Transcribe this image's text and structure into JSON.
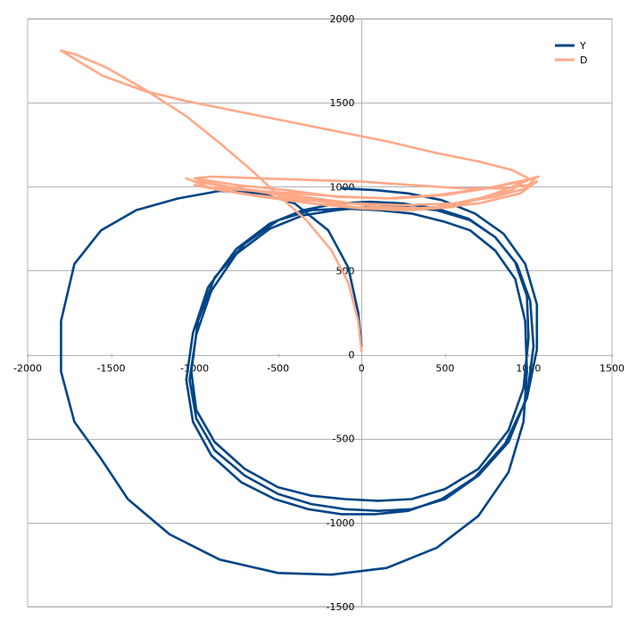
{
  "chart_data": {
    "type": "line",
    "title": "",
    "xlabel": "",
    "ylabel": "",
    "xlim": [
      -2000,
      1500
    ],
    "ylim": [
      -1500,
      2000
    ],
    "xticks": [
      -2000,
      -1500,
      -1000,
      -500,
      0,
      500,
      1000,
      1500
    ],
    "yticks": [
      -1500,
      -1000,
      -500,
      0,
      500,
      1000,
      1500,
      2000
    ],
    "grid": true,
    "axes_cross_at_zero": true,
    "legend_position": "top-right",
    "series": [
      {
        "name": "Y",
        "color": "#004586",
        "points": [
          [
            0,
            50
          ],
          [
            -20,
            250
          ],
          [
            -80,
            520
          ],
          [
            -200,
            740
          ],
          [
            -400,
            900
          ],
          [
            -600,
            960
          ],
          [
            -850,
            975
          ],
          [
            -1100,
            930
          ],
          [
            -1350,
            860
          ],
          [
            -1560,
            740
          ],
          [
            -1720,
            540
          ],
          [
            -1800,
            200
          ],
          [
            -1800,
            -100
          ],
          [
            -1720,
            -400
          ],
          [
            -1560,
            -620
          ],
          [
            -1400,
            -860
          ],
          [
            -1150,
            -1070
          ],
          [
            -850,
            -1220
          ],
          [
            -500,
            -1300
          ],
          [
            -180,
            -1310
          ],
          [
            150,
            -1270
          ],
          [
            450,
            -1150
          ],
          [
            700,
            -960
          ],
          [
            880,
            -700
          ],
          [
            970,
            -400
          ],
          [
            990,
            -100
          ],
          [
            980,
            200
          ],
          [
            920,
            450
          ],
          [
            800,
            620
          ],
          [
            650,
            740
          ],
          [
            500,
            790
          ],
          [
            300,
            840
          ],
          [
            100,
            860
          ],
          [
            -100,
            870
          ],
          [
            -300,
            860
          ],
          [
            -500,
            800
          ],
          [
            -700,
            660
          ],
          [
            -880,
            460
          ],
          [
            -980,
            200
          ],
          [
            -1020,
            -100
          ],
          [
            -990,
            -330
          ],
          [
            -880,
            -520
          ],
          [
            -700,
            -680
          ],
          [
            -500,
            -790
          ],
          [
            -300,
            -840
          ],
          [
            -100,
            -860
          ],
          [
            100,
            -870
          ],
          [
            300,
            -860
          ],
          [
            500,
            -800
          ],
          [
            700,
            -680
          ],
          [
            880,
            -450
          ],
          [
            970,
            -200
          ],
          [
            1000,
            100
          ],
          [
            990,
            350
          ],
          [
            920,
            550
          ],
          [
            800,
            700
          ],
          [
            650,
            800
          ],
          [
            450,
            860
          ],
          [
            250,
            880
          ],
          [
            50,
            880
          ],
          [
            -150,
            860
          ],
          [
            -350,
            830
          ],
          [
            -550,
            750
          ],
          [
            -750,
            600
          ],
          [
            -900,
            380
          ],
          [
            -990,
            120
          ],
          [
            -1030,
            -150
          ],
          [
            -990,
            -380
          ],
          [
            -880,
            -570
          ],
          [
            -700,
            -720
          ],
          [
            -500,
            -830
          ],
          [
            -300,
            -890
          ],
          [
            -100,
            -920
          ],
          [
            100,
            -930
          ],
          [
            300,
            -920
          ],
          [
            500,
            -860
          ],
          [
            700,
            -720
          ],
          [
            880,
            -520
          ],
          [
            990,
            -250
          ],
          [
            1030,
            50
          ],
          [
            1010,
            320
          ],
          [
            930,
            540
          ],
          [
            800,
            700
          ],
          [
            640,
            810
          ],
          [
            450,
            870
          ],
          [
            250,
            900
          ],
          [
            50,
            910
          ],
          [
            -150,
            900
          ],
          [
            -350,
            860
          ],
          [
            -550,
            780
          ],
          [
            -750,
            630
          ],
          [
            -920,
            400
          ],
          [
            -1010,
            130
          ],
          [
            -1050,
            -150
          ],
          [
            -1010,
            -400
          ],
          [
            -900,
            -600
          ],
          [
            -720,
            -760
          ],
          [
            -520,
            -860
          ],
          [
            -320,
            -920
          ],
          [
            -120,
            -950
          ],
          [
            80,
            -950
          ],
          [
            280,
            -930
          ],
          [
            480,
            -860
          ],
          [
            680,
            -730
          ],
          [
            860,
            -530
          ],
          [
            990,
            -260
          ],
          [
            1050,
            30
          ],
          [
            1050,
            300
          ],
          [
            980,
            540
          ],
          [
            850,
            720
          ],
          [
            680,
            840
          ],
          [
            480,
            920
          ],
          [
            280,
            960
          ],
          [
            80,
            980
          ],
          [
            -120,
            990
          ]
        ]
      },
      {
        "name": "D",
        "color": "#ffa988",
        "points": [
          [
            0,
            20
          ],
          [
            -20,
            200
          ],
          [
            -80,
            430
          ],
          [
            -180,
            620
          ],
          [
            -330,
            800
          ],
          [
            -500,
            950
          ],
          [
            -650,
            1090
          ],
          [
            -850,
            1260
          ],
          [
            -1050,
            1420
          ],
          [
            -1300,
            1580
          ],
          [
            -1530,
            1710
          ],
          [
            -1720,
            1790
          ],
          [
            -1800,
            1810
          ],
          [
            -1700,
            1750
          ],
          [
            -1550,
            1660
          ],
          [
            -1300,
            1570
          ],
          [
            -1050,
            1510
          ],
          [
            -750,
            1450
          ],
          [
            -450,
            1390
          ],
          [
            -150,
            1330
          ],
          [
            150,
            1270
          ],
          [
            450,
            1200
          ],
          [
            700,
            1150
          ],
          [
            900,
            1100
          ],
          [
            1000,
            1050
          ],
          [
            900,
            980
          ],
          [
            700,
            930
          ],
          [
            450,
            880
          ],
          [
            200,
            860
          ],
          [
            -50,
            880
          ],
          [
            -300,
            920
          ],
          [
            -550,
            960
          ],
          [
            -800,
            1000
          ],
          [
            -950,
            1030
          ],
          [
            -1000,
            1050
          ],
          [
            -900,
            1060
          ],
          [
            -600,
            1050
          ],
          [
            -300,
            1040
          ],
          [
            0,
            1030
          ],
          [
            300,
            1010
          ],
          [
            600,
            990
          ],
          [
            850,
            990
          ],
          [
            1000,
            1010
          ],
          [
            1050,
            1030
          ],
          [
            950,
            960
          ],
          [
            700,
            900
          ],
          [
            400,
            870
          ],
          [
            100,
            880
          ],
          [
            -200,
            920
          ],
          [
            -500,
            960
          ],
          [
            -800,
            1000
          ],
          [
            -1000,
            1030
          ],
          [
            -1050,
            1050
          ],
          [
            -900,
            990
          ],
          [
            -650,
            950
          ],
          [
            -350,
            920
          ],
          [
            -50,
            900
          ],
          [
            250,
            890
          ],
          [
            550,
            900
          ],
          [
            800,
            940
          ],
          [
            980,
            990
          ],
          [
            1040,
            1050
          ],
          [
            1000,
            1040
          ],
          [
            800,
            960
          ],
          [
            550,
            880
          ],
          [
            300,
            860
          ],
          [
            0,
            870
          ],
          [
            -300,
            900
          ],
          [
            -600,
            940
          ],
          [
            -850,
            980
          ],
          [
            -1000,
            1010
          ],
          [
            -950,
            1000
          ],
          [
            -700,
            980
          ],
          [
            -400,
            960
          ],
          [
            -100,
            940
          ],
          [
            200,
            930
          ],
          [
            500,
            950
          ],
          [
            750,
            990
          ],
          [
            950,
            1030
          ],
          [
            1060,
            1060
          ],
          [
            980,
            1040
          ],
          [
            750,
            990
          ],
          [
            450,
            950
          ],
          [
            150,
            930
          ],
          [
            -150,
            940
          ],
          [
            -450,
            980
          ],
          [
            -750,
            1010
          ],
          [
            -1000,
            1050
          ]
        ]
      }
    ]
  }
}
